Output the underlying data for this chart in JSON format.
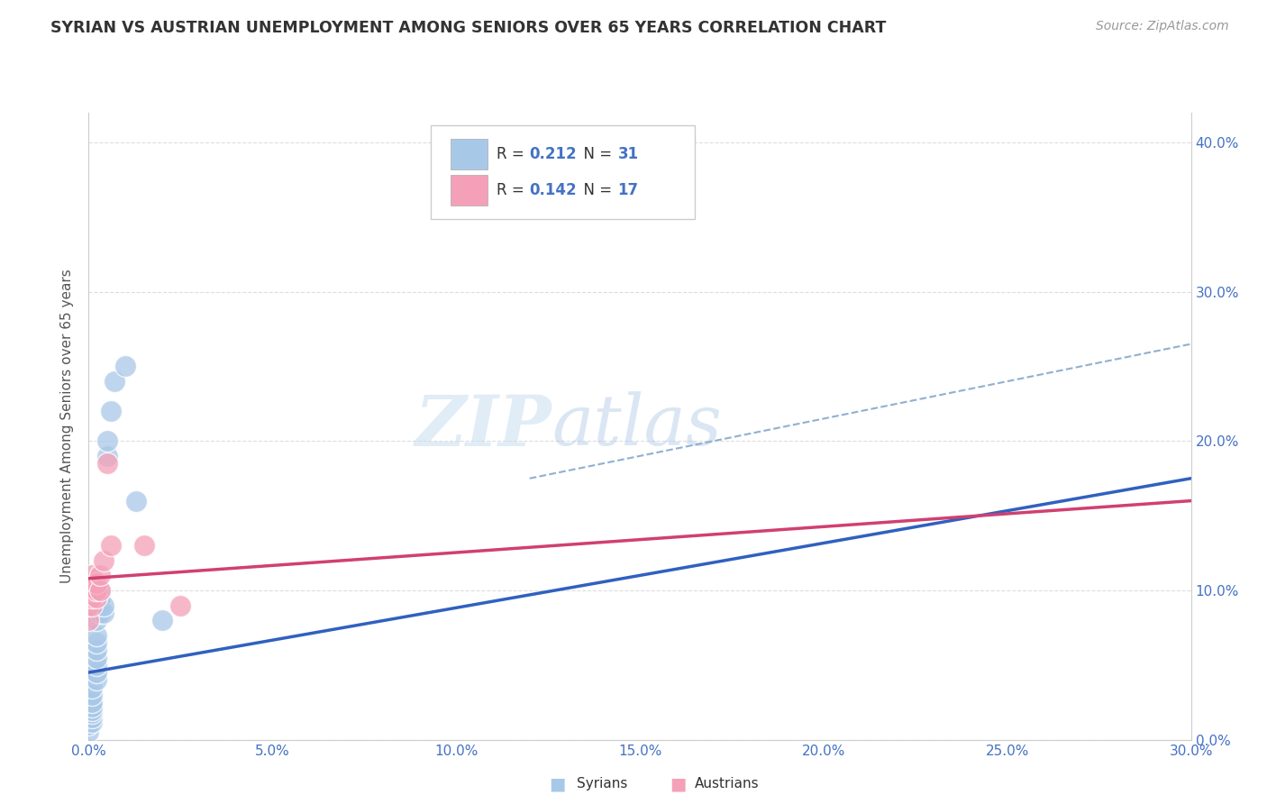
{
  "title": "SYRIAN VS AUSTRIAN UNEMPLOYMENT AMONG SENIORS OVER 65 YEARS CORRELATION CHART",
  "source": "Source: ZipAtlas.com",
  "ylabel": "Unemployment Among Seniors over 65 years",
  "xlim": [
    0.0,
    0.3
  ],
  "ylim": [
    0.0,
    0.42
  ],
  "syrians_x": [
    0.0,
    0.0,
    0.001,
    0.001,
    0.001,
    0.001,
    0.001,
    0.001,
    0.001,
    0.001,
    0.002,
    0.002,
    0.002,
    0.002,
    0.002,
    0.002,
    0.002,
    0.002,
    0.003,
    0.003,
    0.003,
    0.003,
    0.004,
    0.004,
    0.005,
    0.005,
    0.006,
    0.007,
    0.01,
    0.013,
    0.02
  ],
  "syrians_y": [
    0.005,
    0.01,
    0.012,
    0.015,
    0.018,
    0.02,
    0.022,
    0.025,
    0.03,
    0.035,
    0.04,
    0.045,
    0.05,
    0.055,
    0.06,
    0.065,
    0.07,
    0.08,
    0.085,
    0.09,
    0.095,
    0.1,
    0.085,
    0.09,
    0.19,
    0.2,
    0.22,
    0.24,
    0.25,
    0.16,
    0.08
  ],
  "austrians_x": [
    0.0,
    0.0,
    0.001,
    0.001,
    0.001,
    0.001,
    0.001,
    0.002,
    0.002,
    0.002,
    0.003,
    0.003,
    0.004,
    0.005,
    0.006,
    0.015,
    0.025
  ],
  "austrians_y": [
    0.08,
    0.09,
    0.09,
    0.095,
    0.1,
    0.105,
    0.11,
    0.095,
    0.1,
    0.105,
    0.1,
    0.11,
    0.12,
    0.185,
    0.13,
    0.13,
    0.09
  ],
  "syrian_color": "#a8c8e8",
  "austrian_color": "#f4a0b8",
  "syrian_line_color": "#3060c0",
  "austrian_line_color": "#d04070",
  "trendline_dash_color": "#90b0d0",
  "R_syrian": "0.212",
  "N_syrian": "31",
  "R_austrian": "0.142",
  "N_austrian": "17",
  "value_color": "#4472c4",
  "watermark_zip": "ZIP",
  "watermark_atlas": "atlas",
  "background_color": "#ffffff",
  "grid_color": "#dddddd",
  "syrian_trendline_start_x": 0.0,
  "syrian_trendline_start_y": 0.045,
  "syrian_trendline_end_x": 0.3,
  "syrian_trendline_end_y": 0.175,
  "austrian_trendline_start_x": 0.0,
  "austrian_trendline_start_y": 0.108,
  "austrian_trendline_end_x": 0.3,
  "austrian_trendline_end_y": 0.16,
  "dash_trendline_start_x": 0.12,
  "dash_trendline_start_y": 0.175,
  "dash_trendline_end_x": 0.3,
  "dash_trendline_end_y": 0.265
}
